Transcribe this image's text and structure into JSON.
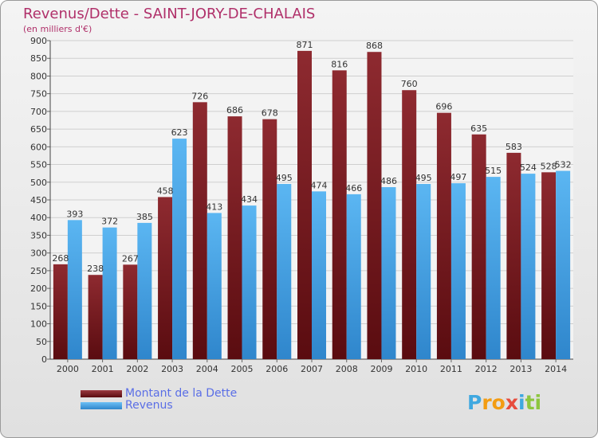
{
  "header": {
    "title": "Revenus/Dette - SAINT-JORY-DE-CHALAIS",
    "subtitle": "(en milliers d'€)"
  },
  "chart_data": {
    "type": "bar",
    "categories": [
      "2000",
      "2001",
      "2002",
      "2003",
      "2004",
      "2005",
      "2006",
      "2007",
      "2008",
      "2009",
      "2010",
      "2011",
      "2012",
      "2013",
      "2014"
    ],
    "series": [
      {
        "name": "Montant de la Dette",
        "color": "#7a1c22",
        "values": [
          268,
          238,
          267,
          458,
          726,
          686,
          678,
          871,
          816,
          868,
          760,
          696,
          635,
          583,
          528
        ]
      },
      {
        "name": "Revenus",
        "color": "#4aa3e6",
        "values": [
          393,
          372,
          385,
          623,
          413,
          434,
          495,
          474,
          466,
          486,
          495,
          497,
          515,
          524,
          532
        ]
      }
    ],
    "ylim": [
      0,
      900
    ],
    "yticks": [
      0,
      50,
      100,
      150,
      200,
      250,
      300,
      350,
      400,
      450,
      500,
      550,
      600,
      650,
      700,
      750,
      800,
      850,
      900
    ],
    "grid": true,
    "legend_position": "bottom-left"
  },
  "legend": {
    "items": [
      {
        "label": "Montant de la Dette",
        "color": "#7a1c22"
      },
      {
        "label": "Revenus",
        "color": "#4aa3e6"
      }
    ]
  },
  "logo": {
    "letters": [
      "P",
      "r",
      "o",
      "x",
      "i",
      "t",
      "i"
    ],
    "colors": [
      "#3fa8e0",
      "#f39c12",
      "#f39c12",
      "#e74c3c",
      "#3fa8e0",
      "#8dc63f",
      "#8dc63f"
    ]
  }
}
